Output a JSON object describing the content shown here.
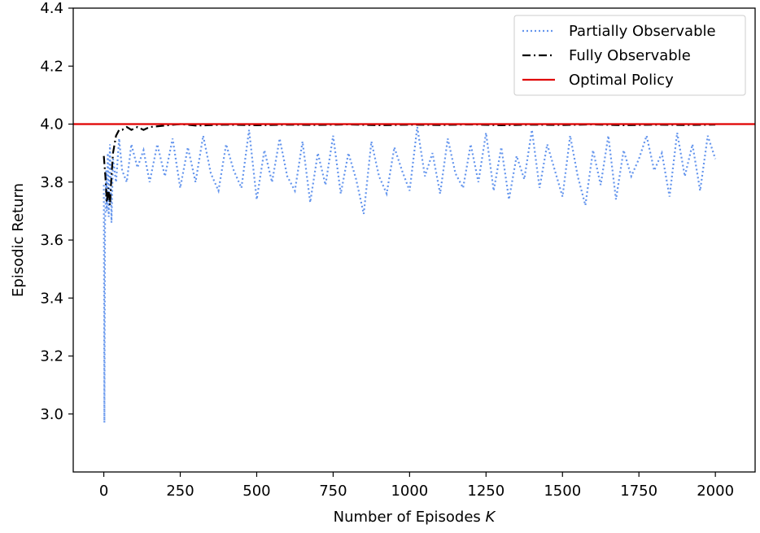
{
  "chart_data": {
    "type": "line",
    "title": "",
    "xlabel": "Number of Episodes",
    "xlabel_var": "K",
    "ylabel": "Episodic Return",
    "xlim": [
      -100,
      2130
    ],
    "ylim": [
      2.8,
      4.4
    ],
    "x_ticks": [
      0,
      250,
      500,
      750,
      1000,
      1250,
      1500,
      1750,
      2000
    ],
    "x_tick_labels": [
      "0",
      "250",
      "500",
      "750",
      "1000",
      "1250",
      "1500",
      "1750",
      "2000"
    ],
    "y_ticks": [
      3.0,
      3.2,
      3.4,
      3.6,
      3.8,
      4.0,
      4.2,
      4.4
    ],
    "y_tick_labels": [
      "3.0",
      "3.2",
      "3.4",
      "3.6",
      "3.8",
      "4.0",
      "4.2",
      "4.4"
    ],
    "grid": false,
    "legend_position": "top-right",
    "series": [
      {
        "name": "Partially Observable",
        "color": "#6495ED",
        "style": "dotted",
        "x": [
          0,
          2,
          4,
          6,
          8,
          10,
          13,
          16,
          20,
          25,
          30,
          40,
          50,
          60,
          75,
          90,
          110,
          130,
          150,
          175,
          200,
          225,
          250,
          275,
          300,
          325,
          350,
          375,
          400,
          425,
          450,
          475,
          500,
          525,
          550,
          575,
          600,
          625,
          650,
          675,
          700,
          725,
          750,
          775,
          800,
          825,
          850,
          875,
          900,
          925,
          950,
          975,
          1000,
          1025,
          1050,
          1075,
          1100,
          1125,
          1150,
          1175,
          1200,
          1225,
          1250,
          1275,
          1300,
          1325,
          1350,
          1375,
          1400,
          1425,
          1450,
          1475,
          1500,
          1525,
          1550,
          1575,
          1600,
          1625,
          1650,
          1675,
          1700,
          1725,
          1750,
          1775,
          1800,
          1825,
          1850,
          1875,
          1900,
          1925,
          1950,
          1975,
          2000
        ],
        "y": [
          3.79,
          2.97,
          3.66,
          3.72,
          3.84,
          3.7,
          3.9,
          3.68,
          3.93,
          3.66,
          3.88,
          3.8,
          3.95,
          3.84,
          3.8,
          3.93,
          3.85,
          3.91,
          3.8,
          3.93,
          3.82,
          3.95,
          3.78,
          3.92,
          3.8,
          3.96,
          3.83,
          3.77,
          3.93,
          3.84,
          3.78,
          3.98,
          3.74,
          3.91,
          3.8,
          3.95,
          3.82,
          3.77,
          3.94,
          3.73,
          3.9,
          3.79,
          3.96,
          3.76,
          3.9,
          3.81,
          3.69,
          3.94,
          3.82,
          3.76,
          3.92,
          3.84,
          3.77,
          3.99,
          3.82,
          3.9,
          3.76,
          3.95,
          3.83,
          3.78,
          3.93,
          3.8,
          3.97,
          3.77,
          3.92,
          3.74,
          3.89,
          3.81,
          3.98,
          3.78,
          3.93,
          3.84,
          3.75,
          3.96,
          3.82,
          3.72,
          3.91,
          3.79,
          3.96,
          3.74,
          3.91,
          3.82,
          3.88,
          3.96,
          3.84,
          3.9,
          3.75,
          3.97,
          3.82,
          3.93,
          3.77,
          3.96,
          3.88
        ]
      },
      {
        "name": "Fully Observable",
        "color": "#000000",
        "style": "dashdot",
        "x": [
          0,
          5,
          10,
          15,
          20,
          25,
          30,
          40,
          50,
          60,
          75,
          90,
          110,
          130,
          150,
          200,
          250,
          300,
          400,
          500,
          600,
          700,
          800,
          900,
          1000,
          1100,
          1200,
          1300,
          1400,
          1500,
          1600,
          1700,
          1800,
          1900,
          2000
        ],
        "y": [
          3.89,
          3.82,
          3.73,
          3.78,
          3.72,
          3.82,
          3.9,
          3.96,
          3.98,
          3.98,
          3.99,
          3.98,
          3.99,
          3.98,
          3.99,
          3.995,
          4.0,
          3.995,
          3.998,
          3.996,
          3.998,
          3.997,
          3.999,
          3.996,
          3.998,
          3.997,
          3.999,
          3.996,
          3.998,
          3.997,
          3.999,
          3.996,
          3.998,
          3.997,
          3.998
        ]
      },
      {
        "name": "Optimal Policy",
        "color": "#E00000",
        "style": "solid",
        "value": 4.0
      }
    ]
  }
}
